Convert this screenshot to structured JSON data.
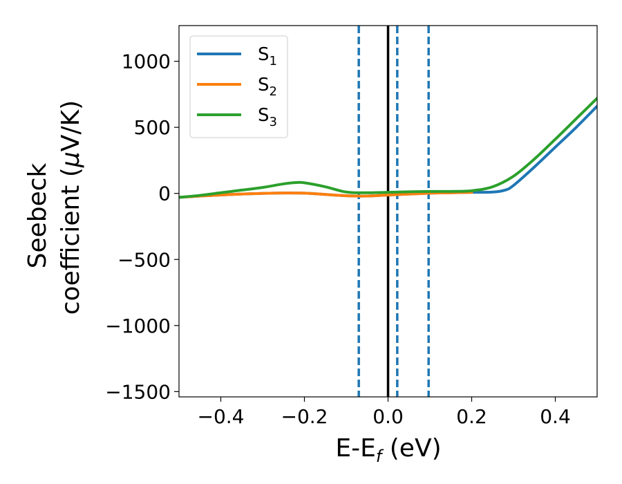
{
  "chart_data": {
    "type": "line",
    "title": "",
    "xlabel": {
      "main": "E-E",
      "sub": "f",
      "tail": " (eV)"
    },
    "ylabel": {
      "line1": "Seebeck",
      "line2_pre": "coefficient  (",
      "line2_mu": "μ",
      "line2_post": "V/K)"
    },
    "xlim": [
      -0.5,
      0.5
    ],
    "ylim": [
      -1540,
      1270
    ],
    "xticks": [
      -0.4,
      -0.2,
      0.0,
      0.2,
      0.4
    ],
    "xtick_labels": [
      "−0.4",
      "−0.2",
      "0.0",
      "0.2",
      "0.4"
    ],
    "yticks": [
      -1500,
      -1000,
      -500,
      0,
      500,
      1000
    ],
    "ytick_labels": [
      "−1500",
      "−1000",
      "−500",
      "0",
      "500",
      "1000"
    ],
    "legend_position": "upper-left",
    "series": [
      {
        "name": "S",
        "sub": "1",
        "color": "#1f77b4",
        "x": [
          -0.5,
          -0.45,
          -0.4,
          -0.35,
          -0.3,
          -0.25,
          -0.2,
          -0.15,
          -0.1,
          -0.05,
          0.0,
          0.05,
          0.1,
          0.15,
          0.2,
          0.25,
          0.28,
          0.3,
          0.35,
          0.4,
          0.45,
          0.5
        ],
        "y": [
          -30,
          -20,
          -12,
          -5,
          0,
          3,
          2,
          -8,
          -18,
          -20,
          -12,
          -5,
          2,
          5,
          8,
          10,
          25,
          60,
          200,
          350,
          500,
          660
        ]
      },
      {
        "name": "S",
        "sub": "2",
        "color": "#ff7f0e",
        "x": [
          -0.5,
          -0.45,
          -0.4,
          -0.35,
          -0.3,
          -0.25,
          -0.2,
          -0.15,
          -0.1,
          -0.05,
          0.0,
          0.05,
          0.1,
          0.15,
          0.2
        ],
        "y": [
          -30,
          -20,
          -12,
          -5,
          0,
          3,
          2,
          -8,
          -18,
          -20,
          -12,
          -5,
          2,
          5,
          8
        ]
      },
      {
        "name": "S",
        "sub": "3",
        "color": "#2ca02c",
        "x": [
          -0.5,
          -0.45,
          -0.4,
          -0.35,
          -0.3,
          -0.25,
          -0.22,
          -0.2,
          -0.15,
          -0.1,
          -0.05,
          0.0,
          0.05,
          0.1,
          0.15,
          0.2,
          0.25,
          0.3,
          0.35,
          0.4,
          0.45,
          0.5
        ],
        "y": [
          -30,
          -15,
          5,
          25,
          45,
          72,
          82,
          80,
          50,
          10,
          5,
          8,
          12,
          15,
          15,
          20,
          50,
          130,
          260,
          410,
          565,
          720
        ]
      }
    ],
    "vlines_dashed": {
      "x": [
        -0.07,
        0.022,
        0.097
      ],
      "color": "#1f77b4"
    },
    "vline_solid": {
      "x": 0.0,
      "color": "#000000"
    }
  }
}
